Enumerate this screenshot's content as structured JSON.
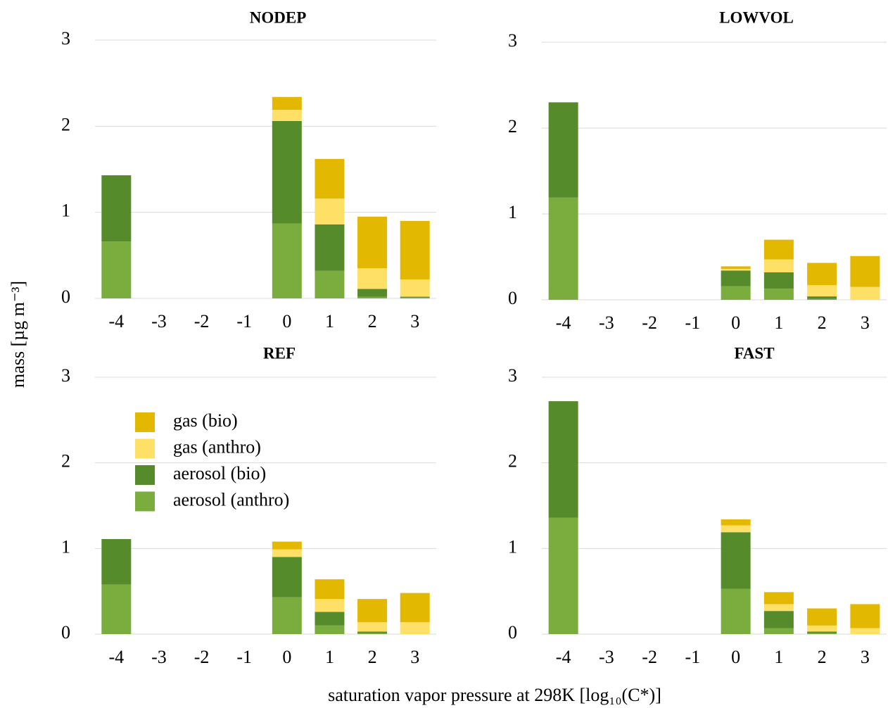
{
  "x_label": "saturation vapor pressure at 298K [log₁₀(C*)]",
  "y_label": "mass [µg m⁻³]",
  "chart_data": [
    {
      "type": "bar",
      "stacked": true,
      "title": "NODEP",
      "categories": [
        "-4",
        "-3",
        "-2",
        "-1",
        "0",
        "1",
        "2",
        "3"
      ],
      "ylim": [
        0,
        3
      ],
      "yticks": [
        0,
        1,
        2,
        3
      ],
      "grid": true,
      "series": [
        {
          "color": "#7aad3e",
          "values": [
            0.66,
            0,
            0,
            0,
            0.87,
            0.32,
            0.02,
            0.01
          ]
        },
        {
          "color": "#558b2a",
          "values": [
            0.77,
            0,
            0,
            0,
            1.19,
            0.54,
            0.09,
            0.01
          ]
        },
        {
          "color": "#ffe066",
          "values": [
            0,
            0,
            0,
            0,
            0.13,
            0.3,
            0.24,
            0.2
          ]
        },
        {
          "color": "#e3b800",
          "values": [
            0,
            0,
            0,
            0,
            0.15,
            0.46,
            0.6,
            0.68
          ]
        }
      ]
    },
    {
      "type": "bar",
      "stacked": true,
      "title": "LOWVOL",
      "categories": [
        "-4",
        "-3",
        "-2",
        "-1",
        "0",
        "1",
        "2",
        "3"
      ],
      "ylim": [
        0,
        3
      ],
      "yticks": [
        0,
        1,
        2,
        3
      ],
      "grid": true,
      "series": [
        {
          "color": "#7aad3e",
          "values": [
            1.19,
            0,
            0,
            0,
            0.16,
            0.13,
            0.01,
            0
          ]
        },
        {
          "color": "#558b2a",
          "values": [
            1.11,
            0,
            0,
            0,
            0.18,
            0.19,
            0.03,
            0
          ]
        },
        {
          "color": "#ffe066",
          "values": [
            0,
            0,
            0,
            0,
            0.02,
            0.15,
            0.13,
            0.15
          ]
        },
        {
          "color": "#e3b800",
          "values": [
            0,
            0,
            0,
            0,
            0.03,
            0.23,
            0.26,
            0.36
          ]
        }
      ]
    },
    {
      "type": "bar",
      "stacked": true,
      "title": "REF",
      "categories": [
        "-4",
        "-3",
        "-2",
        "-1",
        "0",
        "1",
        "2",
        "3"
      ],
      "ylim": [
        0,
        3
      ],
      "yticks": [
        0,
        1,
        2,
        3
      ],
      "grid": true,
      "legend": "upper left",
      "series": [
        {
          "name": "aerosol (anthro)",
          "color": "#7aad3e",
          "values": [
            0.58,
            0,
            0,
            0,
            0.43,
            0.1,
            0.01,
            0
          ]
        },
        {
          "name": "aerosol (bio)",
          "color": "#558b2a",
          "values": [
            0.53,
            0,
            0,
            0,
            0.47,
            0.16,
            0.02,
            0
          ]
        },
        {
          "name": "gas (anthro)",
          "color": "#ffe066",
          "values": [
            0,
            0,
            0,
            0,
            0.09,
            0.15,
            0.11,
            0.14
          ]
        },
        {
          "name": "gas (bio)",
          "color": "#e3b800",
          "values": [
            0,
            0,
            0,
            0,
            0.09,
            0.23,
            0.27,
            0.34
          ]
        }
      ]
    },
    {
      "type": "bar",
      "stacked": true,
      "title": "FAST",
      "categories": [
        "-4",
        "-3",
        "-2",
        "-1",
        "0",
        "1",
        "2",
        "3"
      ],
      "ylim": [
        0,
        3
      ],
      "yticks": [
        0,
        1,
        2,
        3
      ],
      "grid": true,
      "series": [
        {
          "color": "#7aad3e",
          "values": [
            1.36,
            0,
            0,
            0,
            0.53,
            0.07,
            0.01,
            0
          ]
        },
        {
          "color": "#558b2a",
          "values": [
            1.36,
            0,
            0,
            0,
            0.66,
            0.2,
            0.02,
            0
          ]
        },
        {
          "color": "#ffe066",
          "values": [
            0,
            0,
            0,
            0,
            0.08,
            0.08,
            0.07,
            0.07
          ]
        },
        {
          "color": "#e3b800",
          "values": [
            0,
            0,
            0,
            0,
            0.07,
            0.14,
            0.2,
            0.28
          ]
        }
      ]
    }
  ]
}
